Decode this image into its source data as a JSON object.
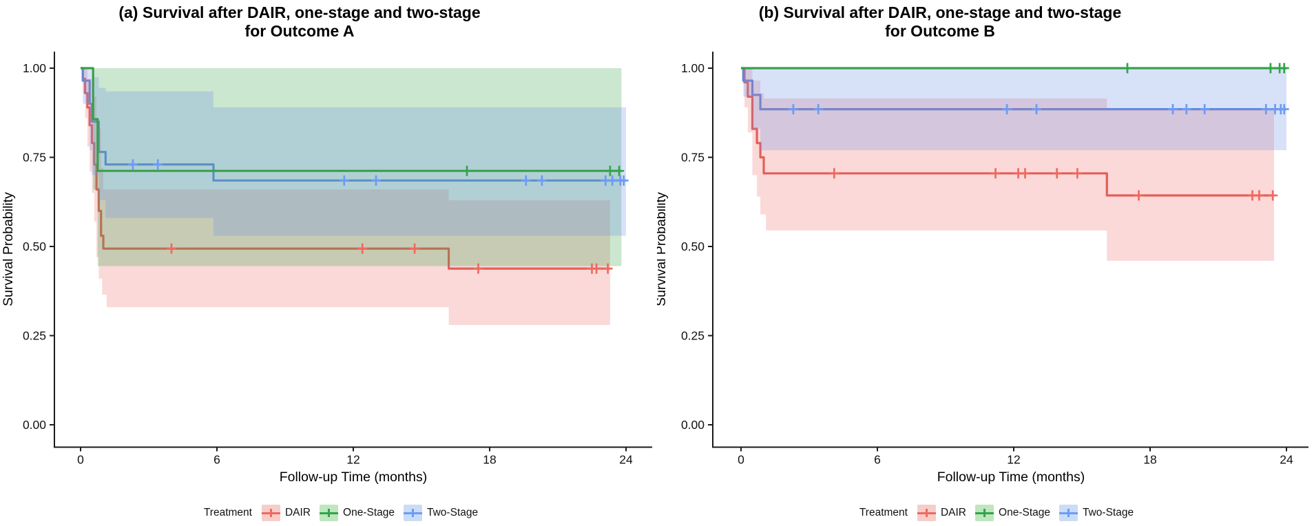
{
  "legend": {
    "title": "Treatment"
  },
  "chart_data": [
    {
      "type": "line",
      "subtype": "kaplan-meier-survival",
      "panel": "a",
      "title_lines": [
        "(a) Survival after DAIR, one-stage and two-stage",
        "for Outcome A"
      ],
      "xlabel": "Follow-up Time (months)",
      "ylabel": "Survival Probability",
      "xlim": [
        0,
        24
      ],
      "ylim": [
        0,
        1
      ],
      "x_ticks": [
        "0",
        "6",
        "12",
        "18",
        "24"
      ],
      "y_ticks": [
        "1.00",
        "0.75",
        "0.50",
        "0.25",
        "0.00"
      ],
      "grid": false,
      "legend_position": "bottom",
      "series": [
        {
          "name": "DAIR",
          "line_color": "#E05D55",
          "mark_color": "#ED6A60",
          "fill_color": "rgba(235,105,98,0.25)",
          "swatch_fill": "#F6CDC9",
          "end_time": 23.3,
          "steps": [
            [
              0,
              1.0
            ],
            [
              0.1,
              0.97
            ],
            [
              0.2,
              0.93
            ],
            [
              0.3,
              0.89
            ],
            [
              0.4,
              0.84
            ],
            [
              0.5,
              0.79
            ],
            [
              0.6,
              0.73
            ],
            [
              0.7,
              0.66
            ],
            [
              0.8,
              0.6
            ],
            [
              0.9,
              0.53
            ],
            [
              1.0,
              0.494
            ],
            [
              16.2,
              0.438
            ]
          ],
          "censors": [
            [
              4.0,
              0.494
            ],
            [
              12.4,
              0.494
            ],
            [
              14.7,
              0.494
            ],
            [
              17.5,
              0.438
            ],
            [
              22.5,
              0.438
            ],
            [
              22.7,
              0.438
            ],
            [
              23.2,
              0.438
            ]
          ],
          "ci_upper": [
            [
              0,
              1.0
            ],
            [
              0.3,
              0.97
            ],
            [
              0.5,
              0.92
            ],
            [
              0.7,
              0.83
            ],
            [
              0.9,
              0.72
            ],
            [
              1.0,
              0.66
            ],
            [
              16.2,
              0.63
            ]
          ],
          "ci_lower": [
            [
              0,
              1.0
            ],
            [
              0.1,
              0.93
            ],
            [
              0.2,
              0.86
            ],
            [
              0.3,
              0.78
            ],
            [
              0.4,
              0.71
            ],
            [
              0.5,
              0.65
            ],
            [
              0.6,
              0.57
            ],
            [
              0.7,
              0.47
            ],
            [
              0.8,
              0.41
            ],
            [
              0.95,
              0.365
            ],
            [
              1.15,
              0.33
            ],
            [
              16.2,
              0.28
            ]
          ]
        },
        {
          "name": "One-Stage",
          "line_color": "#38A048",
          "mark_color": "#33A44A",
          "fill_color": "rgba(70,170,82,0.28)",
          "swatch_fill": "#BFE6BE",
          "end_time": 23.8,
          "steps": [
            [
              0,
              1.0
            ],
            [
              0.55,
              0.857
            ],
            [
              0.75,
              0.712
            ]
          ],
          "censors": [
            [
              17.0,
              0.712
            ],
            [
              23.3,
              0.712
            ],
            [
              23.7,
              0.712
            ]
          ],
          "ci_upper": [
            [
              0,
              1.0
            ]
          ],
          "ci_lower": [
            [
              0,
              1.0
            ],
            [
              0.55,
              0.66
            ],
            [
              0.75,
              0.445
            ]
          ]
        },
        {
          "name": "Two-Stage",
          "line_color": "#5B84DB",
          "mark_color": "#6E9BF4",
          "fill_color": "rgba(110,150,235,0.28)",
          "swatch_fill": "#CBDCF8",
          "end_time": 24.0,
          "steps": [
            [
              0,
              1.0
            ],
            [
              0.1,
              0.965
            ],
            [
              0.4,
              0.9
            ],
            [
              0.5,
              0.85
            ],
            [
              0.8,
              0.765
            ],
            [
              1.1,
              0.73
            ],
            [
              5.85,
              0.685
            ]
          ],
          "censors": [
            [
              2.3,
              0.73
            ],
            [
              3.4,
              0.73
            ],
            [
              11.6,
              0.685
            ],
            [
              13.0,
              0.685
            ],
            [
              19.6,
              0.685
            ],
            [
              20.3,
              0.685
            ],
            [
              23.1,
              0.685
            ],
            [
              23.4,
              0.685
            ],
            [
              23.75,
              0.685
            ],
            [
              23.9,
              0.685
            ]
          ],
          "ci_upper": [
            [
              0,
              1.0
            ],
            [
              0.5,
              0.975
            ],
            [
              0.8,
              0.945
            ],
            [
              1.1,
              0.935
            ],
            [
              5.85,
              0.89
            ]
          ],
          "ci_lower": [
            [
              0,
              1.0
            ],
            [
              0.1,
              0.9
            ],
            [
              0.4,
              0.77
            ],
            [
              0.5,
              0.7
            ],
            [
              0.8,
              0.63
            ],
            [
              1.1,
              0.58
            ],
            [
              5.85,
              0.53
            ]
          ]
        }
      ]
    },
    {
      "type": "line",
      "subtype": "kaplan-meier-survival",
      "panel": "b",
      "title_lines": [
        "(b) Survival after DAIR, one-stage and two-stage",
        "for Outcome B"
      ],
      "xlabel": "Follow-up Time (months)",
      "ylabel": "Survival Probability",
      "xlim": [
        0,
        24
      ],
      "ylim": [
        0,
        1
      ],
      "x_ticks": [
        "0",
        "6",
        "12",
        "18",
        "24"
      ],
      "y_ticks": [
        "1.00",
        "0.75",
        "0.50",
        "0.25",
        "0.00"
      ],
      "grid": false,
      "legend_position": "bottom",
      "series": [
        {
          "name": "DAIR",
          "line_color": "#E05D55",
          "mark_color": "#ED6A60",
          "fill_color": "rgba(235,105,98,0.25)",
          "swatch_fill": "#F6CDC9",
          "end_time": 23.45,
          "steps": [
            [
              0,
              1.0
            ],
            [
              0.15,
              0.96
            ],
            [
              0.3,
              0.92
            ],
            [
              0.5,
              0.83
            ],
            [
              0.7,
              0.79
            ],
            [
              0.85,
              0.75
            ],
            [
              1.0,
              0.705
            ],
            [
              16.1,
              0.643
            ]
          ],
          "censors": [
            [
              4.1,
              0.705
            ],
            [
              11.2,
              0.705
            ],
            [
              12.2,
              0.705
            ],
            [
              12.5,
              0.705
            ],
            [
              13.9,
              0.705
            ],
            [
              14.8,
              0.705
            ],
            [
              17.5,
              0.643
            ],
            [
              22.5,
              0.643
            ],
            [
              22.8,
              0.643
            ],
            [
              23.4,
              0.643
            ]
          ],
          "ci_upper": [
            [
              0,
              1.0
            ],
            [
              0.5,
              0.965
            ],
            [
              0.85,
              0.93
            ],
            [
              1.0,
              0.915
            ],
            [
              16.1,
              0.885
            ]
          ],
          "ci_lower": [
            [
              0,
              1.0
            ],
            [
              0.15,
              0.89
            ],
            [
              0.3,
              0.82
            ],
            [
              0.5,
              0.7
            ],
            [
              0.7,
              0.64
            ],
            [
              0.85,
              0.59
            ],
            [
              1.1,
              0.545
            ],
            [
              16.1,
              0.46
            ]
          ]
        },
        {
          "name": "One-Stage",
          "line_color": "#38A048",
          "mark_color": "#33A44A",
          "fill_color": "rgba(70,170,82,0.28)",
          "swatch_fill": "#BFE6BE",
          "end_time": 24.0,
          "steps": [
            [
              0,
              1.0
            ]
          ],
          "censors": [
            [
              17.0,
              1.0
            ],
            [
              23.3,
              1.0
            ],
            [
              23.7,
              1.0
            ],
            [
              23.9,
              1.0
            ]
          ],
          "ci_upper": null,
          "ci_lower": null
        },
        {
          "name": "Two-Stage",
          "line_color": "#5B84DB",
          "mark_color": "#6E9BF4",
          "fill_color": "rgba(110,150,235,0.28)",
          "swatch_fill": "#CBDCF8",
          "end_time": 24.0,
          "steps": [
            [
              0,
              1.0
            ],
            [
              0.1,
              0.965
            ],
            [
              0.5,
              0.925
            ],
            [
              0.85,
              0.885
            ]
          ],
          "censors": [
            [
              2.3,
              0.885
            ],
            [
              3.4,
              0.885
            ],
            [
              11.7,
              0.885
            ],
            [
              13.0,
              0.885
            ],
            [
              19.0,
              0.885
            ],
            [
              19.6,
              0.885
            ],
            [
              20.4,
              0.885
            ],
            [
              23.1,
              0.885
            ],
            [
              23.5,
              0.885
            ],
            [
              23.75,
              0.885
            ],
            [
              23.9,
              0.885
            ]
          ],
          "ci_upper": [
            [
              0,
              1.0
            ]
          ],
          "ci_lower": [
            [
              0,
              1.0
            ],
            [
              0.1,
              0.92
            ],
            [
              0.5,
              0.83
            ],
            [
              0.85,
              0.77
            ]
          ]
        }
      ]
    }
  ]
}
